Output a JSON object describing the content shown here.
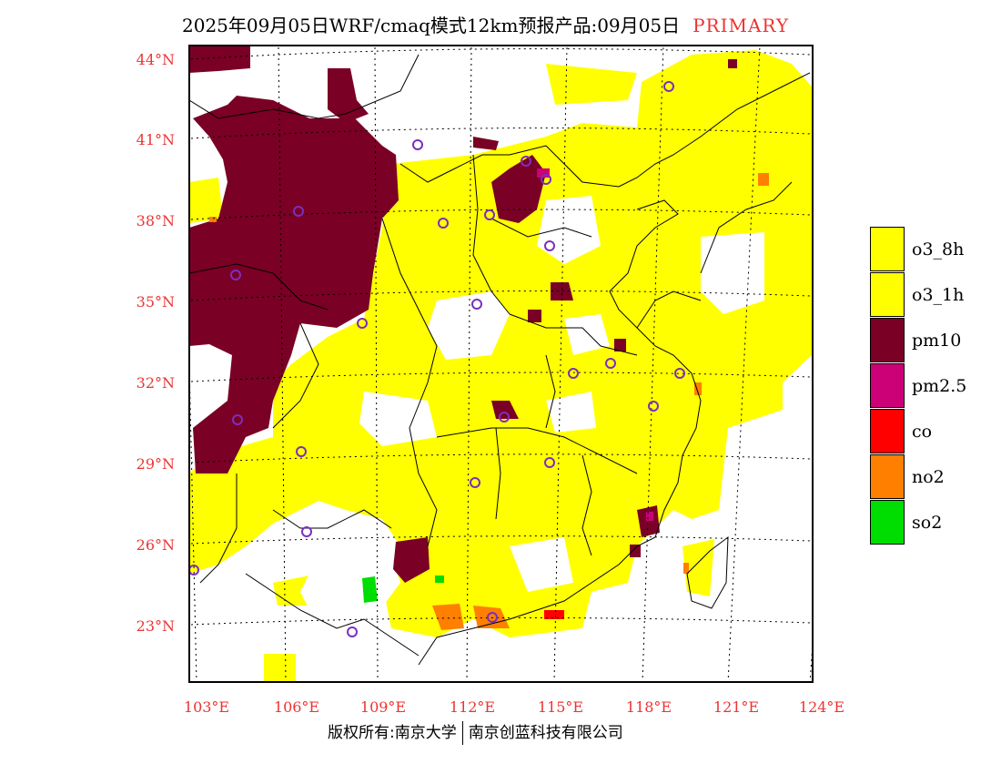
{
  "title": {
    "main": "2025年09月05日WRF/cmaq模式12km预报产品:09月05日",
    "tag": "PRIMARY"
  },
  "colors": {
    "o3_8h": "#ffff00",
    "o3_1h": "#ffff00",
    "pm10": "#7a0026",
    "pm2_5": "#cc0077",
    "co": "#ff0000",
    "no2": "#ff7f00",
    "so2": "#00dd00",
    "axis_label": "#e33333",
    "station_marker": "#7b2fbe"
  },
  "axes": {
    "lat_labels": [
      "44°N",
      "41°N",
      "38°N",
      "35°N",
      "32°N",
      "29°N",
      "26°N",
      "23°N"
    ],
    "lon_labels": [
      "103°E",
      "106°E",
      "109°E",
      "112°E",
      "115°E",
      "118°E",
      "121°E",
      "124°E"
    ]
  },
  "legend": [
    {
      "label": "o3_8h",
      "color": "#ffff00"
    },
    {
      "label": "o3_1h",
      "color": "#ffff00"
    },
    {
      "label": "pm10",
      "color": "#7a0026"
    },
    {
      "label": "pm2.5",
      "color": "#cc0077"
    },
    {
      "label": "co",
      "color": "#ff0000"
    },
    {
      "label": "no2",
      "color": "#ff7f00"
    },
    {
      "label": "so2",
      "color": "#00dd00"
    }
  ],
  "footer": {
    "left": "版权所有:南京大学",
    "right": "南京创蓝科技有限公司"
  }
}
